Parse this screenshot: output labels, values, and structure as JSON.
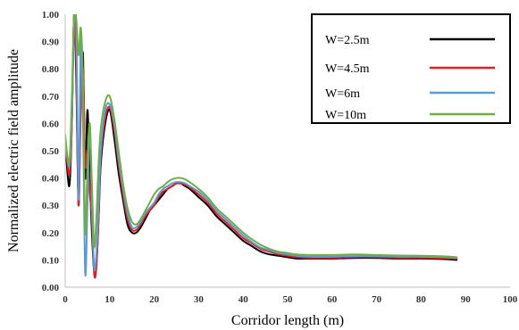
{
  "chart_data": {
    "type": "line",
    "title": "",
    "xlabel": "Corridor length  (m)",
    "ylabel": "Normalized electric field amplitude",
    "xlim": [
      0,
      100
    ],
    "ylim": [
      0,
      1.0
    ],
    "x_ticks": [
      0,
      10,
      20,
      30,
      40,
      50,
      60,
      70,
      80,
      90,
      100
    ],
    "x_tick_labels": [
      "0",
      "10",
      "20",
      "30",
      "40",
      "50",
      "60",
      "70",
      "80",
      "90",
      "100"
    ],
    "y_ticks": [
      0,
      0.1,
      0.2,
      0.3,
      0.4,
      0.5,
      0.6,
      0.7,
      0.8,
      0.9,
      1.0
    ],
    "y_tick_labels": [
      "0.00",
      "0.10",
      "0.20",
      "0.30",
      "0.40",
      "0.50",
      "0.60",
      "0.70",
      "0.80",
      "0.90",
      "1.00"
    ],
    "grid": false,
    "legend_position": "top-right",
    "series": [
      {
        "name": "W=2.5m",
        "color": "#000000",
        "x": [
          0,
          0.5,
          1,
          1.5,
          2,
          2.5,
          3,
          3.5,
          4,
          4.5,
          5,
          5.5,
          6,
          6.5,
          7,
          7.5,
          8,
          9,
          10,
          11,
          12,
          13,
          14,
          15,
          16,
          17,
          18,
          19,
          20,
          21,
          22,
          23,
          24,
          25,
          26,
          27,
          28,
          30,
          32,
          34,
          36,
          38,
          40,
          42,
          44,
          46,
          48,
          50,
          52,
          55,
          60,
          65,
          70,
          75,
          80,
          85,
          88
        ],
        "y": [
          0.55,
          0.42,
          0.38,
          0.6,
          1.0,
          0.75,
          0.3,
          0.7,
          0.85,
          0.4,
          0.65,
          0.4,
          0.2,
          0.06,
          0.08,
          0.25,
          0.45,
          0.6,
          0.65,
          0.55,
          0.42,
          0.32,
          0.23,
          0.2,
          0.2,
          0.22,
          0.25,
          0.28,
          0.3,
          0.32,
          0.34,
          0.36,
          0.37,
          0.38,
          0.38,
          0.37,
          0.36,
          0.33,
          0.3,
          0.26,
          0.23,
          0.2,
          0.17,
          0.15,
          0.13,
          0.12,
          0.115,
          0.11,
          0.105,
          0.105,
          0.105,
          0.107,
          0.107,
          0.105,
          0.105,
          0.103,
          0.1
        ]
      },
      {
        "name": "W=4.5m",
        "color": "#e02020",
        "x": [
          0,
          0.5,
          1,
          1.5,
          2,
          2.5,
          3,
          3.5,
          4,
          4.5,
          5,
          5.5,
          6,
          6.5,
          7,
          7.5,
          8,
          9,
          10,
          11,
          12,
          13,
          14,
          15,
          16,
          17,
          18,
          19,
          20,
          21,
          22,
          23,
          24,
          25,
          26,
          27,
          28,
          30,
          32,
          34,
          36,
          38,
          40,
          42,
          44,
          46,
          48,
          50,
          52,
          55,
          60,
          65,
          70,
          75,
          80,
          85,
          88
        ],
        "y": [
          0.55,
          0.45,
          0.42,
          0.6,
          1.0,
          0.8,
          0.3,
          0.65,
          0.8,
          0.45,
          0.5,
          0.35,
          0.25,
          0.05,
          0.07,
          0.25,
          0.48,
          0.62,
          0.66,
          0.58,
          0.45,
          0.34,
          0.25,
          0.21,
          0.21,
          0.23,
          0.26,
          0.28,
          0.3,
          0.33,
          0.35,
          0.36,
          0.37,
          0.38,
          0.38,
          0.375,
          0.365,
          0.34,
          0.31,
          0.27,
          0.24,
          0.21,
          0.18,
          0.16,
          0.14,
          0.13,
          0.12,
          0.115,
          0.11,
          0.108,
          0.108,
          0.11,
          0.11,
          0.108,
          0.108,
          0.106,
          0.104
        ]
      },
      {
        "name": "W=6m",
        "color": "#5b9bd5",
        "x": [
          0,
          0.5,
          1,
          1.5,
          2,
          2.5,
          3,
          3.5,
          4,
          4.5,
          5,
          5.5,
          6,
          6.5,
          7,
          7.5,
          8,
          9,
          10,
          11,
          12,
          13,
          14,
          15,
          16,
          17,
          18,
          19,
          20,
          21,
          22,
          23,
          24,
          25,
          26,
          27,
          28,
          30,
          32,
          34,
          36,
          38,
          40,
          42,
          44,
          46,
          48,
          50,
          52,
          55,
          60,
          65,
          70,
          75,
          80,
          85,
          88
        ],
        "y": [
          0.55,
          0.47,
          0.45,
          0.62,
          0.97,
          0.95,
          0.32,
          0.9,
          0.6,
          0.05,
          0.3,
          0.6,
          0.3,
          0.07,
          0.12,
          0.3,
          0.5,
          0.65,
          0.67,
          0.6,
          0.47,
          0.36,
          0.27,
          0.22,
          0.22,
          0.24,
          0.27,
          0.29,
          0.31,
          0.34,
          0.36,
          0.37,
          0.38,
          0.385,
          0.385,
          0.38,
          0.37,
          0.35,
          0.32,
          0.28,
          0.25,
          0.22,
          0.19,
          0.165,
          0.145,
          0.135,
          0.125,
          0.12,
          0.115,
          0.112,
          0.112,
          0.114,
          0.114,
          0.112,
          0.112,
          0.11,
          0.108
        ]
      },
      {
        "name": "W=10m",
        "color": "#70ad47",
        "x": [
          0,
          0.5,
          1,
          1.5,
          2,
          2.5,
          3,
          3.5,
          4,
          4.5,
          5,
          5.5,
          6,
          6.5,
          7,
          7.5,
          8,
          9,
          10,
          11,
          12,
          13,
          14,
          15,
          16,
          17,
          18,
          19,
          20,
          21,
          22,
          23,
          24,
          25,
          26,
          27,
          28,
          30,
          32,
          34,
          36,
          38,
          40,
          42,
          44,
          46,
          48,
          50,
          52,
          55,
          60,
          65,
          70,
          75,
          80,
          85,
          88
        ],
        "y": [
          0.56,
          0.48,
          0.47,
          0.7,
          1.0,
          0.98,
          0.85,
          0.95,
          0.75,
          0.2,
          0.45,
          0.6,
          0.38,
          0.15,
          0.25,
          0.45,
          0.58,
          0.68,
          0.7,
          0.62,
          0.5,
          0.38,
          0.29,
          0.24,
          0.23,
          0.25,
          0.28,
          0.31,
          0.34,
          0.36,
          0.37,
          0.385,
          0.395,
          0.4,
          0.4,
          0.395,
          0.385,
          0.36,
          0.33,
          0.29,
          0.26,
          0.23,
          0.2,
          0.175,
          0.155,
          0.14,
          0.13,
          0.125,
          0.12,
          0.118,
          0.118,
          0.12,
          0.118,
          0.116,
          0.115,
          0.113,
          0.11
        ]
      }
    ]
  }
}
